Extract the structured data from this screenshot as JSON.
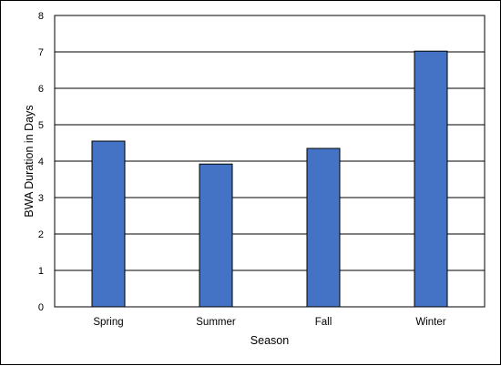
{
  "chart_data": {
    "type": "bar",
    "title": "",
    "xlabel": "Season",
    "ylabel": "BWA Duration in Days",
    "categories": [
      "Spring",
      "Summer",
      "Fall",
      "Winter"
    ],
    "values": [
      4.55,
      3.92,
      4.35,
      7.02
    ],
    "ylim": [
      0,
      8
    ],
    "yticks": [
      "0",
      "1",
      "2",
      "3",
      "4",
      "5",
      "6",
      "7",
      "8"
    ],
    "grid": true,
    "legend": "none",
    "bar_color": "#4472C4",
    "bar_edge_color": "#000000",
    "grid_color": "#000000"
  }
}
